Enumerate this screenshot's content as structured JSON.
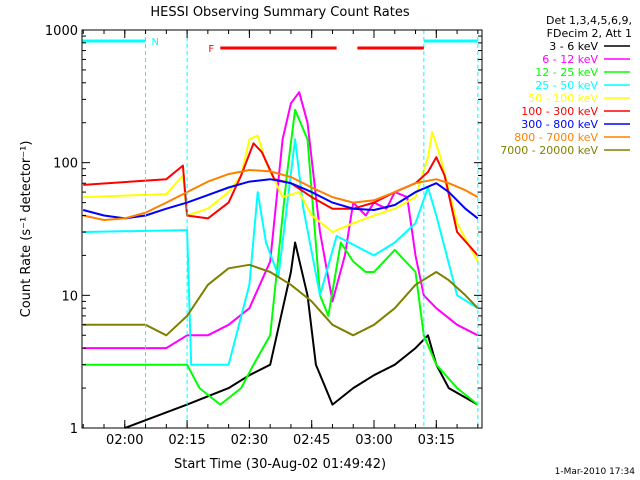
{
  "chart_data": {
    "type": "line",
    "title": "HESSI Observing Summary Count Rates",
    "xlabel": "Start Time (30-Aug-02 01:49:42)",
    "ylabel": "Count Rate (s⁻¹ detector⁻¹)",
    "yscale": "log",
    "ylim": [
      1,
      1000
    ],
    "xlim": [
      "01:49:42",
      "03:26:00"
    ],
    "y_ticks": [
      {
        "value": 1,
        "label": "1"
      },
      {
        "value": 10,
        "label": "10"
      },
      {
        "value": 100,
        "label": "100"
      },
      {
        "value": 1000,
        "label": "1000"
      }
    ],
    "x_ticks": [
      {
        "value": "02:00",
        "label": "02:00"
      },
      {
        "value": "02:15",
        "label": "02:15"
      },
      {
        "value": "02:30",
        "label": "02:30"
      },
      {
        "value": "02:45",
        "label": "02:45"
      },
      {
        "value": "03:00",
        "label": "03:00"
      },
      {
        "value": "03:15",
        "label": "03:15"
      }
    ],
    "legend": {
      "placement": "right",
      "header": [
        "Det 1,3,4,5,6,9,",
        "FDecim 2, Att 1"
      ]
    },
    "series": [
      {
        "name": "3 - 6 keV",
        "color": "#000000",
        "points": [
          [
            "02:00",
            1
          ],
          [
            "02:15",
            1.5
          ],
          [
            "02:25",
            2
          ],
          [
            "02:30",
            2.5
          ],
          [
            "02:35",
            3
          ],
          [
            "02:40",
            15
          ],
          [
            "02:41",
            25
          ],
          [
            "02:44",
            10
          ],
          [
            "02:46",
            3
          ],
          [
            "02:50",
            1.5
          ],
          [
            "02:55",
            2
          ],
          [
            "03:00",
            2.5
          ],
          [
            "03:05",
            3
          ],
          [
            "03:10",
            4
          ],
          [
            "03:13",
            5
          ],
          [
            "03:15",
            3
          ],
          [
            "03:18",
            2
          ],
          [
            "03:25",
            1.5
          ]
        ]
      },
      {
        "name": "6 - 12 keV",
        "color": "#ff00ff",
        "points": [
          [
            "01:50",
            4
          ],
          [
            "02:10",
            4
          ],
          [
            "02:15",
            5
          ],
          [
            "02:20",
            5
          ],
          [
            "02:25",
            6
          ],
          [
            "02:30",
            8
          ],
          [
            "02:35",
            18
          ],
          [
            "02:38",
            150
          ],
          [
            "02:40",
            280
          ],
          [
            "02:42",
            340
          ],
          [
            "02:44",
            200
          ],
          [
            "02:47",
            30
          ],
          [
            "02:50",
            9
          ],
          [
            "02:53",
            20
          ],
          [
            "02:55",
            50
          ],
          [
            "02:58",
            40
          ],
          [
            "03:00",
            50
          ],
          [
            "03:03",
            45
          ],
          [
            "03:05",
            60
          ],
          [
            "03:08",
            55
          ],
          [
            "03:10",
            20
          ],
          [
            "03:12",
            10
          ],
          [
            "03:15",
            8
          ],
          [
            "03:20",
            6
          ],
          [
            "03:25",
            5
          ]
        ]
      },
      {
        "name": "12 - 25 keV",
        "color": "#00ff00",
        "points": [
          [
            "01:50",
            3
          ],
          [
            "02:15",
            3
          ],
          [
            "02:18",
            2
          ],
          [
            "02:23",
            1.5
          ],
          [
            "02:28",
            2
          ],
          [
            "02:31",
            3
          ],
          [
            "02:35",
            5
          ],
          [
            "02:39",
            80
          ],
          [
            "02:41",
            250
          ],
          [
            "02:44",
            150
          ],
          [
            "02:47",
            10
          ],
          [
            "02:49",
            7
          ],
          [
            "02:52",
            25
          ],
          [
            "02:55",
            18
          ],
          [
            "02:58",
            15
          ],
          [
            "03:00",
            15
          ],
          [
            "03:05",
            22
          ],
          [
            "03:10",
            15
          ],
          [
            "03:12",
            5
          ],
          [
            "03:15",
            3
          ],
          [
            "03:20",
            2
          ],
          [
            "03:25",
            1.5
          ]
        ]
      },
      {
        "name": "25 - 50 keV",
        "color": "#00ffff",
        "points": [
          [
            "01:50",
            30
          ],
          [
            "02:15",
            31
          ],
          [
            "02:16",
            3
          ],
          [
            "02:25",
            3
          ],
          [
            "02:30",
            12
          ],
          [
            "02:32",
            60
          ],
          [
            "02:34",
            25
          ],
          [
            "02:37",
            14
          ],
          [
            "02:41",
            150
          ],
          [
            "02:43",
            45
          ],
          [
            "02:47",
            10
          ],
          [
            "02:51",
            28
          ],
          [
            "02:54",
            25
          ],
          [
            "03:00",
            20
          ],
          [
            "03:05",
            25
          ],
          [
            "03:10",
            35
          ],
          [
            "03:13",
            65
          ],
          [
            "03:15",
            40
          ],
          [
            "03:20",
            10
          ],
          [
            "03:25",
            8
          ]
        ]
      },
      {
        "name": "50 - 100 keV",
        "color": "#ffff00",
        "points": [
          [
            "01:50",
            55
          ],
          [
            "02:10",
            58
          ],
          [
            "02:14",
            80
          ],
          [
            "02:15",
            40
          ],
          [
            "02:20",
            45
          ],
          [
            "02:25",
            60
          ],
          [
            "02:28",
            80
          ],
          [
            "02:30",
            150
          ],
          [
            "02:32",
            160
          ],
          [
            "02:34",
            100
          ],
          [
            "02:38",
            55
          ],
          [
            "02:42",
            60
          ],
          [
            "02:45",
            40
          ],
          [
            "02:50",
            30
          ],
          [
            "02:55",
            35
          ],
          [
            "03:00",
            40
          ],
          [
            "03:05",
            45
          ],
          [
            "03:10",
            55
          ],
          [
            "03:13",
            110
          ],
          [
            "03:14",
            170
          ],
          [
            "03:16",
            110
          ],
          [
            "03:20",
            35
          ],
          [
            "03:25",
            18
          ]
        ]
      },
      {
        "name": "100 - 300 keV",
        "color": "#ff0000",
        "points": [
          [
            "01:50",
            68
          ],
          [
            "02:10",
            75
          ],
          [
            "02:14",
            95
          ],
          [
            "02:15",
            40
          ],
          [
            "02:20",
            38
          ],
          [
            "02:25",
            50
          ],
          [
            "02:28",
            80
          ],
          [
            "02:31",
            140
          ],
          [
            "02:33",
            120
          ],
          [
            "02:36",
            75
          ],
          [
            "02:40",
            70
          ],
          [
            "02:45",
            55
          ],
          [
            "02:50",
            45
          ],
          [
            "02:55",
            45
          ],
          [
            "03:00",
            50
          ],
          [
            "03:05",
            60
          ],
          [
            "03:10",
            70
          ],
          [
            "03:13",
            85
          ],
          [
            "03:15",
            110
          ],
          [
            "03:17",
            80
          ],
          [
            "03:20",
            30
          ],
          [
            "03:25",
            20
          ]
        ]
      },
      {
        "name": "300 - 800 keV",
        "color": "#0000ff",
        "points": [
          [
            "01:50",
            44
          ],
          [
            "01:55",
            40
          ],
          [
            "02:00",
            38
          ],
          [
            "02:05",
            40
          ],
          [
            "02:10",
            45
          ],
          [
            "02:15",
            50
          ],
          [
            "02:20",
            57
          ],
          [
            "02:25",
            65
          ],
          [
            "02:30",
            72
          ],
          [
            "02:35",
            75
          ],
          [
            "02:40",
            70
          ],
          [
            "02:45",
            60
          ],
          [
            "02:50",
            50
          ],
          [
            "02:55",
            45
          ],
          [
            "03:00",
            44
          ],
          [
            "03:05",
            48
          ],
          [
            "03:10",
            60
          ],
          [
            "03:15",
            70
          ],
          [
            "03:18",
            60
          ],
          [
            "03:22",
            45
          ],
          [
            "03:25",
            38
          ]
        ]
      },
      {
        "name": "800 - 7000 keV",
        "color": "#ff8000",
        "points": [
          [
            "01:50",
            40
          ],
          [
            "01:55",
            37
          ],
          [
            "02:00",
            38
          ],
          [
            "02:05",
            42
          ],
          [
            "02:10",
            50
          ],
          [
            "02:15",
            60
          ],
          [
            "02:20",
            72
          ],
          [
            "02:25",
            82
          ],
          [
            "02:30",
            88
          ],
          [
            "02:35",
            86
          ],
          [
            "02:40",
            78
          ],
          [
            "02:45",
            65
          ],
          [
            "02:50",
            55
          ],
          [
            "02:55",
            50
          ],
          [
            "03:00",
            52
          ],
          [
            "03:05",
            60
          ],
          [
            "03:10",
            70
          ],
          [
            "03:15",
            75
          ],
          [
            "03:18",
            70
          ],
          [
            "03:22",
            62
          ],
          [
            "03:25",
            55
          ]
        ]
      },
      {
        "name": "7000 - 20000 keV",
        "color": "#808000",
        "points": [
          [
            "01:50",
            6
          ],
          [
            "02:05",
            6
          ],
          [
            "02:10",
            5
          ],
          [
            "02:15",
            7
          ],
          [
            "02:20",
            12
          ],
          [
            "02:25",
            16
          ],
          [
            "02:30",
            17
          ],
          [
            "02:35",
            15
          ],
          [
            "02:40",
            12
          ],
          [
            "02:45",
            9
          ],
          [
            "02:50",
            6
          ],
          [
            "02:55",
            5
          ],
          [
            "03:00",
            6
          ],
          [
            "03:05",
            8
          ],
          [
            "03:10",
            12
          ],
          [
            "03:15",
            15
          ],
          [
            "03:18",
            13
          ],
          [
            "03:22",
            10
          ],
          [
            "03:25",
            8
          ]
        ]
      }
    ],
    "annotations": [
      {
        "text": "N",
        "color": "#00ffff",
        "segments": [
          [
            "01:49:42",
            "02:05"
          ],
          [
            "03:12",
            "03:25"
          ]
        ]
      },
      {
        "text": "F",
        "color": "#ff0000",
        "segments": [
          [
            "02:23",
            "02:51"
          ],
          [
            "02:56",
            "03:12"
          ]
        ]
      }
    ],
    "vertical_markers": [
      {
        "color": "#00ffff",
        "x": [
          "02:05",
          "02:15",
          "03:12",
          "03:25"
        ]
      }
    ],
    "footer_stamp": "1-Mar-2010 17:34"
  }
}
